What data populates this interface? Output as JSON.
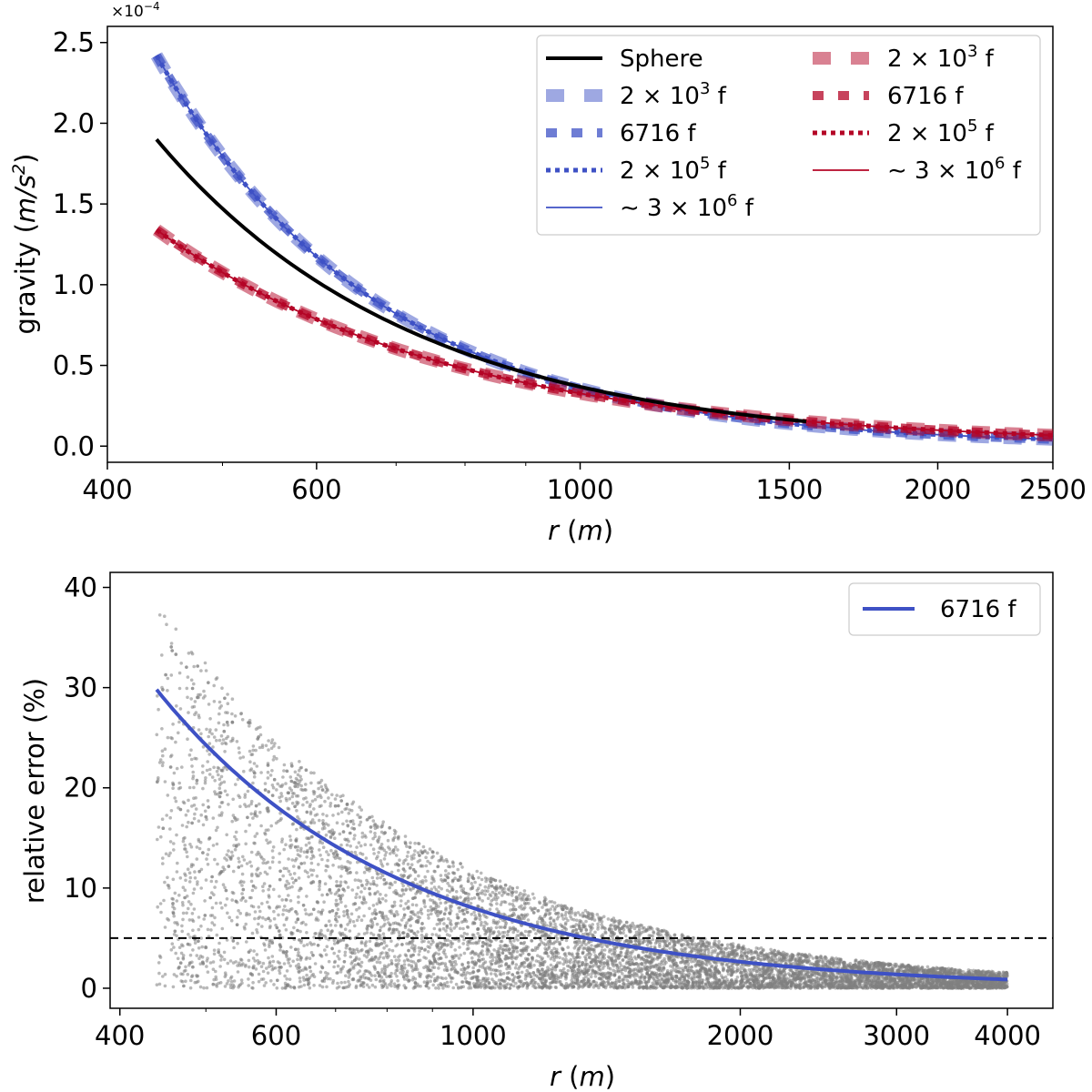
{
  "chart_data": [
    {
      "type": "line",
      "id": "gravity",
      "xscale": "log",
      "xlabel_var": "r",
      "xlabel_unit": "m",
      "ylabel_text": "gravity",
      "ylabel_unit_base": "m/s",
      "ylabel_unit_exp": "2",
      "y_offset_base": "×10",
      "y_offset_exp": "−4",
      "y_multiplier": 0.0001,
      "xlim": [
        400,
        2500
      ],
      "ylim": [
        -0.1,
        2.6
      ],
      "xticks": [
        400,
        600,
        1000,
        1500,
        2000,
        2500
      ],
      "yticks": [
        0.0,
        0.5,
        1.0,
        1.5,
        2.0,
        2.5
      ],
      "ytick_labels": [
        "0.0",
        "0.5",
        "1.0",
        "1.5",
        "2.0",
        "2.5"
      ],
      "legend_position": "top-right",
      "colors": {
        "sphere": "#000000",
        "blue": "#3e51c5",
        "red": "#b40426"
      },
      "curves": {
        "sphere": {
          "r0": 440,
          "g0": 1.9,
          "power": 2.0
        },
        "blue": {
          "r0": 440,
          "g0": 2.42,
          "power": 2.33
        },
        "red": {
          "r0": 440,
          "g0": 1.34,
          "power": 1.72
        }
      },
      "series": [
        {
          "name": "Sphere",
          "curve": "sphere",
          "style": "solid-thick"
        },
        {
          "name": "2 × 10³ f",
          "curve": "blue",
          "style": "dash-light",
          "legend_main": "2 × 10",
          "legend_sup": "3",
          "legend_tail": " f"
        },
        {
          "name": "6716 f",
          "curve": "blue",
          "style": "dash-med",
          "legend_main": "6716 f"
        },
        {
          "name": "2 × 10⁵ f",
          "curve": "blue",
          "style": "dotted",
          "legend_main": "2 × 10",
          "legend_sup": "5",
          "legend_tail": " f"
        },
        {
          "name": "~ 3 × 10⁶ f",
          "curve": "blue",
          "style": "thin",
          "legend_main": "∼ 3 × 10",
          "legend_sup": "6",
          "legend_tail": " f"
        },
        {
          "name": "2 × 10³ f",
          "curve": "red",
          "style": "dash-light",
          "legend_main": "2 × 10",
          "legend_sup": "3",
          "legend_tail": " f"
        },
        {
          "name": "6716 f",
          "curve": "red",
          "style": "dash-med",
          "legend_main": "6716 f"
        },
        {
          "name": "2 × 10⁵ f",
          "curve": "red",
          "style": "dotted",
          "legend_main": "2 × 10",
          "legend_sup": "5",
          "legend_tail": " f"
        },
        {
          "name": "~ 3 × 10⁶ f",
          "curve": "red",
          "style": "thin",
          "legend_main": "∼ 3 × 10",
          "legend_sup": "6",
          "legend_tail": " f"
        }
      ],
      "sphere_label": "Sphere"
    },
    {
      "type": "scatter",
      "id": "relative-error",
      "xscale": "log",
      "xlabel_var": "r",
      "xlabel_unit": "m",
      "ylabel_text": "relative error  (%)",
      "xlim": [
        390,
        4500
      ],
      "ylim": [
        -2,
        41.5
      ],
      "xticks": [
        400,
        600,
        1000,
        2000,
        3000,
        4000
      ],
      "yticks": [
        0,
        10,
        20,
        30,
        40
      ],
      "scatter_color": "#808080",
      "scatter_points_approx": 9000,
      "scatter_rmin": 440,
      "scatter_rmax": 4000,
      "scatter_envelope": {
        "r0": 440,
        "max_at_r0": 39,
        "power": 1.45
      },
      "threshold_line": {
        "y": 5,
        "style": "dashed",
        "color": "#000000"
      },
      "series": [
        {
          "name": "6716 f",
          "color": "#3e51c5",
          "r0": 440,
          "y0": 29.8,
          "power": 1.6,
          "xmax": 4000
        }
      ],
      "legend_position": "top-right",
      "legend_label": "6716 f"
    }
  ]
}
